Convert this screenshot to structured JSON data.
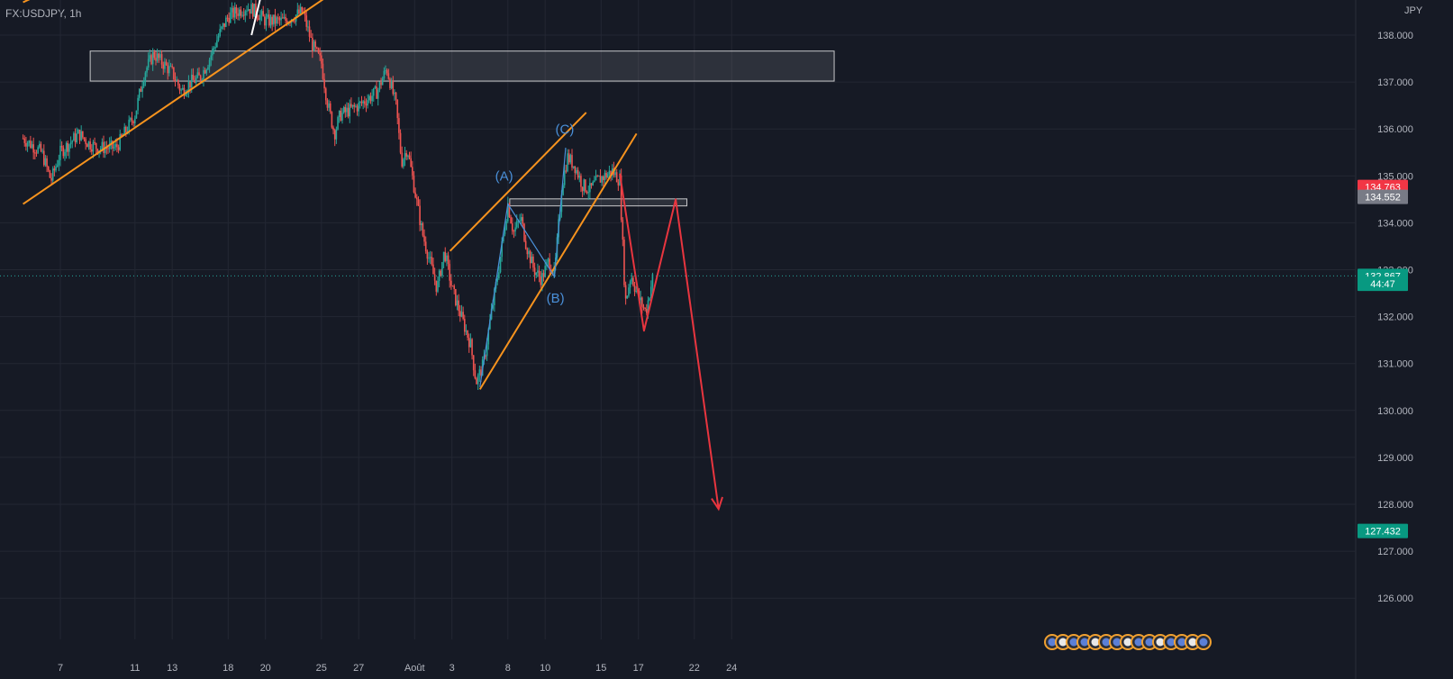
{
  "symbol_label": "FX:USDJPY, 1h",
  "currency": "JPY",
  "colors": {
    "background": "#161a25",
    "grid": "#232733",
    "candle_up": "#26a69a",
    "candle_down": "#ef5350",
    "trendline": "#f7931e",
    "wave": "#4a90d9",
    "projection": "#e8353f",
    "zone": "#ffffff",
    "axis_text": "#b2b5be"
  },
  "chart_data": {
    "type": "candlestick",
    "timeframe": "1h",
    "ylim": [
      125.3,
      138.6
    ],
    "y_ticks": [
      "126.000",
      "127.000",
      "128.000",
      "129.000",
      "130.000",
      "131.000",
      "132.000",
      "133.000",
      "134.000",
      "135.000",
      "136.000",
      "137.000",
      "138.000"
    ],
    "x_ticks": [
      "7",
      "11",
      "13",
      "18",
      "20",
      "25",
      "27",
      "Août",
      "3",
      "8",
      "10",
      "15",
      "17",
      "22",
      "24"
    ],
    "x_tick_bar": [
      0,
      4,
      6,
      9,
      11,
      14,
      16,
      19,
      21,
      24,
      26,
      29,
      31,
      34,
      36
    ],
    "price_path": [
      [
        -2,
        135.8
      ],
      [
        -1,
        135.5
      ],
      [
        -0.5,
        134.9
      ],
      [
        0,
        135.5
      ],
      [
        1,
        135.9
      ],
      [
        1.5,
        135.7
      ],
      [
        2,
        135.6
      ],
      [
        3,
        135.6
      ],
      [
        4,
        136.3
      ],
      [
        4.5,
        137.2
      ],
      [
        5,
        137.6
      ],
      [
        6,
        137.2
      ],
      [
        6.5,
        136.8
      ],
      [
        7,
        137.0
      ],
      [
        7.5,
        137.1
      ],
      [
        8,
        137.5
      ],
      [
        8.5,
        138.0
      ],
      [
        9,
        138.4
      ],
      [
        10,
        138.6
      ],
      [
        10.5,
        138.5
      ],
      [
        11,
        138.3
      ],
      [
        12,
        138.3
      ],
      [
        12.5,
        138.4
      ],
      [
        13,
        138.5
      ],
      [
        13.5,
        137.8
      ],
      [
        14,
        137.4
      ],
      [
        14.3,
        136.6
      ],
      [
        14.7,
        135.9
      ],
      [
        15,
        136.3
      ],
      [
        16,
        136.5
      ],
      [
        17,
        136.8
      ],
      [
        17.5,
        137.3
      ],
      [
        18,
        136.5
      ],
      [
        18.3,
        135.3
      ],
      [
        18.6,
        135.6
      ],
      [
        19.4,
        133.8
      ],
      [
        19.8,
        133.2
      ],
      [
        20.2,
        132.6
      ],
      [
        20.6,
        133.4
      ],
      [
        21,
        132.6
      ],
      [
        21.5,
        132.0
      ],
      [
        22,
        131.4
      ],
      [
        22.3,
        130.6
      ],
      [
        22.7,
        131.0
      ],
      [
        23,
        131.8
      ],
      [
        23.5,
        133.0
      ],
      [
        24,
        134.4
      ],
      [
        24.3,
        133.8
      ],
      [
        24.7,
        134.1
      ],
      [
        25,
        133.5
      ],
      [
        25.4,
        133.0
      ],
      [
        25.8,
        132.8
      ],
      [
        26.2,
        133.2
      ],
      [
        26.5,
        132.9
      ],
      [
        26.9,
        134.8
      ],
      [
        27.2,
        135.4
      ],
      [
        27.6,
        135.2
      ],
      [
        28,
        134.8
      ],
      [
        28.4,
        134.7
      ],
      [
        28.8,
        134.9
      ],
      [
        29.2,
        135.0
      ],
      [
        29.6,
        135.1
      ],
      [
        30,
        134.9
      ],
      [
        30.3,
        132.3
      ],
      [
        30.6,
        132.9
      ],
      [
        31,
        132.4
      ],
      [
        31.4,
        132.1
      ],
      [
        31.8,
        132.9
      ]
    ],
    "zones": [
      {
        "x_start": 1.6,
        "x_end": 41.5,
        "y_low": 137.02,
        "y_high": 137.66
      },
      {
        "x_start": 24.1,
        "x_end": 33.6,
        "y_low": 134.36,
        "y_high": 134.51
      }
    ],
    "trendlines": [
      {
        "points": [
          [
            -2,
            138.7
          ],
          [
            0.7,
            139.2
          ]
        ]
      },
      {
        "points": [
          [
            -2,
            134.4
          ],
          [
            15.7,
            139.2
          ]
        ]
      },
      {
        "points": [
          [
            20.9,
            133.4
          ],
          [
            28.2,
            136.35
          ]
        ]
      },
      {
        "points": [
          [
            22.5,
            130.45
          ],
          [
            30.9,
            135.9
          ]
        ]
      }
    ],
    "waves": [
      {
        "points": [
          [
            22.5,
            130.5
          ],
          [
            24.0,
            134.4
          ],
          [
            26.5,
            132.85
          ],
          [
            27.1,
            135.6
          ]
        ]
      }
    ],
    "wave_labels": [
      {
        "text": "(A)",
        "x": 23.8,
        "y": 134.9
      },
      {
        "text": "(B)",
        "x": 26.55,
        "y": 132.3
      },
      {
        "text": "(C)",
        "x": 27.05,
        "y": 135.9
      }
    ],
    "projection": [
      [
        30.0,
        135.05
      ],
      [
        31.3,
        131.7
      ],
      [
        33.0,
        134.5
      ],
      [
        35.3,
        127.9
      ]
    ],
    "projection_arrow_head": [
      35.3,
      127.9
    ],
    "price_labels": [
      {
        "text": "134.763",
        "value": 134.763,
        "bg": "#f23645"
      },
      {
        "text": "134.552",
        "value": 134.552,
        "bg": "#787b86"
      },
      {
        "text": "132.867",
        "value": 132.867,
        "bg": "#089981"
      },
      {
        "text": "44:47",
        "value": 132.7,
        "bg": "#089981"
      },
      {
        "text": "127.432",
        "value": 127.432,
        "bg": "#089981"
      }
    ],
    "current_price": 132.867,
    "event_icons_count": 15
  }
}
